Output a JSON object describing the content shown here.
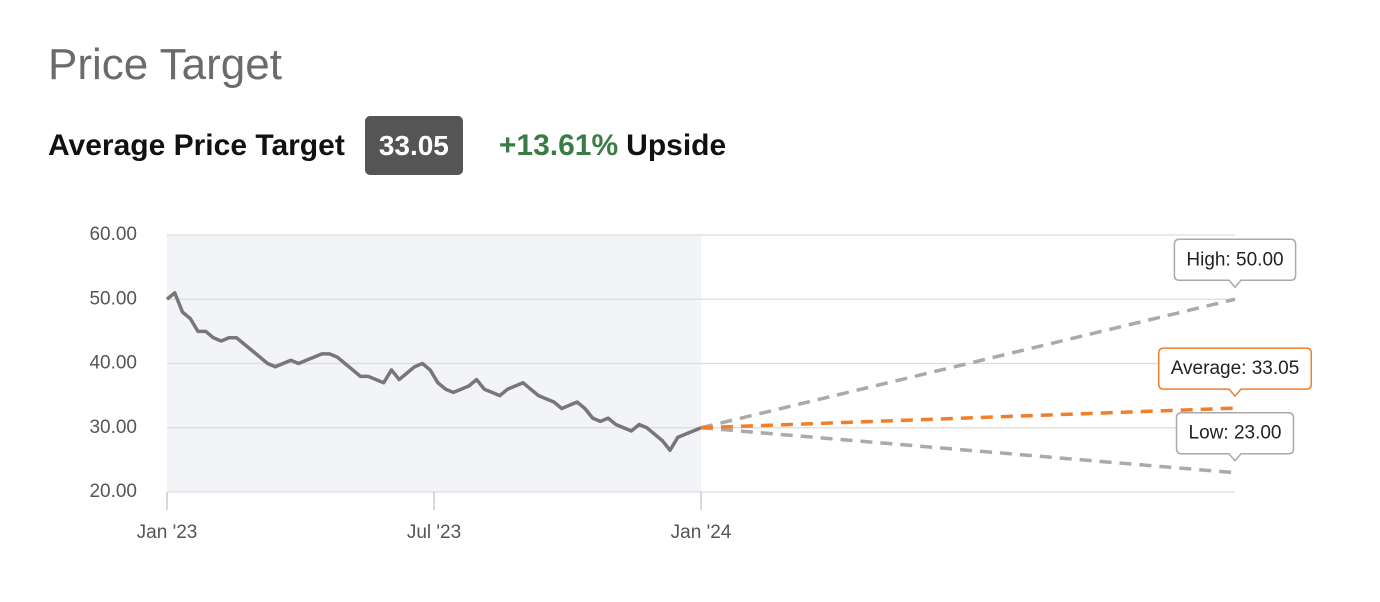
{
  "header": {
    "title": "Price Target",
    "label": "Average Price Target",
    "value": "33.05",
    "change": "+13.61%",
    "change_suffix": "Upside"
  },
  "chart_data": {
    "type": "line",
    "xlim": [
      "2023-01",
      "2025-01"
    ],
    "xticks": [
      {
        "value": "2023-01",
        "label": "Jan '23"
      },
      {
        "value": "2023-07",
        "label": "Jul '23"
      },
      {
        "value": "2024-01",
        "label": "Jan '24"
      }
    ],
    "ylim": [
      20,
      60
    ],
    "yticks": [
      {
        "value": 20,
        "label": "20.00"
      },
      {
        "value": 30,
        "label": "30.00"
      },
      {
        "value": 40,
        "label": "40.00"
      },
      {
        "value": 50,
        "label": "50.00"
      },
      {
        "value": 60,
        "label": "60.00"
      }
    ],
    "grid": true,
    "shade_history": true,
    "history": {
      "color": "#777777",
      "x_range": [
        "2023-01",
        "2024-01"
      ],
      "values": [
        50,
        51,
        48,
        47,
        45,
        45,
        44,
        43.5,
        44,
        44,
        43,
        42,
        41,
        40,
        39.5,
        40,
        40.5,
        40,
        40.5,
        41,
        41.5,
        41.5,
        41,
        40,
        39,
        38,
        38,
        37.5,
        37,
        39,
        37.5,
        38.5,
        39.5,
        40,
        39,
        37,
        36,
        35.5,
        36,
        36.5,
        37.5,
        36,
        35.5,
        35,
        36,
        36.5,
        37,
        36,
        35,
        34.5,
        34,
        33,
        33.5,
        34,
        33,
        31.5,
        31,
        31.5,
        30.5,
        30,
        29.5,
        30.5,
        30,
        29,
        28,
        26.5,
        28.5,
        29,
        29.5,
        30
      ]
    },
    "targets": [
      {
        "label": "High",
        "value": 50,
        "value_label": "50.00",
        "color": "#aaaaaa"
      },
      {
        "label": "Average",
        "value": 33.05,
        "value_label": "33.05",
        "color": "#f07f2c"
      },
      {
        "label": "Low",
        "value": 23,
        "value_label": "23.00",
        "color": "#aaaaaa"
      }
    ]
  }
}
